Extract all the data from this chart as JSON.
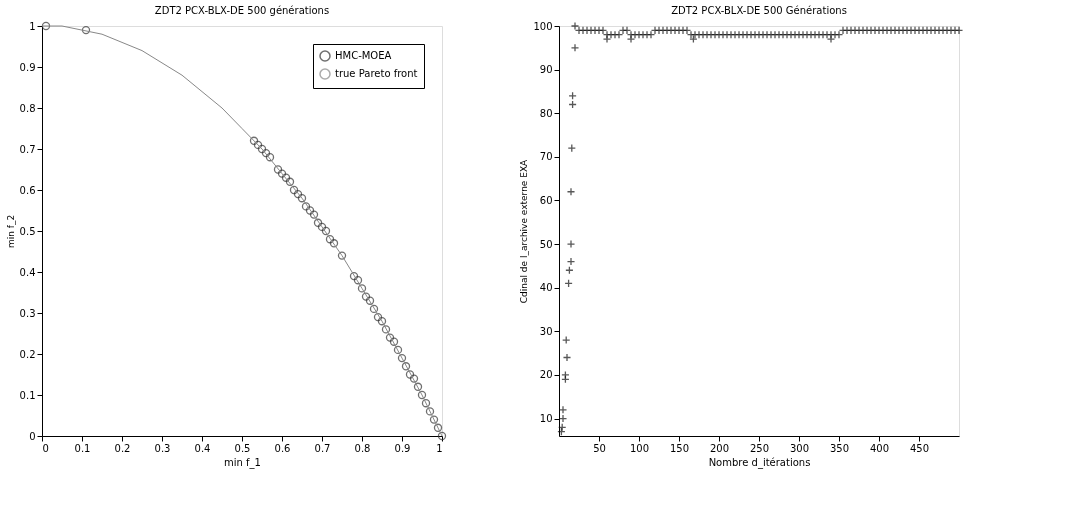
{
  "chart_data": [
    {
      "type": "scatter",
      "title": "ZDT2   PCX-BLX-DE   500 générations",
      "xlabel": "min f_1",
      "ylabel": "min f_2",
      "xlim": [
        0,
        1
      ],
      "ylim": [
        0,
        1
      ],
      "xticks": [
        0,
        0.1,
        0.2,
        0.3,
        0.4,
        0.5,
        0.6,
        0.7,
        0.8,
        0.9,
        1
      ],
      "yticks": [
        0,
        0.1,
        0.2,
        0.3,
        0.4,
        0.5,
        0.6,
        0.7,
        0.8,
        0.9,
        1
      ],
      "grid": false,
      "legend": "top right",
      "series": [
        {
          "name": "HMC-MOEA",
          "type": "scatter",
          "marker": "circle",
          "color": "#333333",
          "x": [
            0.01,
            0.11,
            0.53,
            0.54,
            0.55,
            0.56,
            0.57,
            0.59,
            0.6,
            0.61,
            0.62,
            0.63,
            0.64,
            0.65,
            0.66,
            0.67,
            0.68,
            0.69,
            0.7,
            0.71,
            0.72,
            0.73,
            0.75,
            0.78,
            0.79,
            0.8,
            0.81,
            0.82,
            0.83,
            0.84,
            0.85,
            0.86,
            0.87,
            0.88,
            0.89,
            0.9,
            0.91,
            0.92,
            0.93,
            0.94,
            0.95,
            0.96,
            0.97,
            0.98,
            0.99,
            1.0
          ],
          "values": [
            1.0,
            0.99,
            0.72,
            0.71,
            0.7,
            0.69,
            0.68,
            0.65,
            0.64,
            0.63,
            0.62,
            0.6,
            0.59,
            0.58,
            0.56,
            0.55,
            0.54,
            0.52,
            0.51,
            0.5,
            0.48,
            0.47,
            0.44,
            0.39,
            0.38,
            0.36,
            0.34,
            0.33,
            0.31,
            0.29,
            0.28,
            0.26,
            0.24,
            0.23,
            0.21,
            0.19,
            0.17,
            0.15,
            0.14,
            0.12,
            0.1,
            0.08,
            0.06,
            0.04,
            0.02,
            0.0
          ]
        },
        {
          "name": "true Pareto front",
          "type": "line",
          "line_style": "solid",
          "color": "#888888",
          "x": [
            0,
            0.05,
            0.1,
            0.15,
            0.2,
            0.25,
            0.3,
            0.35,
            0.4,
            0.45,
            0.5,
            0.55,
            0.6,
            0.65,
            0.7,
            0.75,
            0.8,
            0.85,
            0.9,
            0.95,
            1
          ],
          "values": [
            1,
            1.0,
            0.99,
            0.98,
            0.96,
            0.94,
            0.91,
            0.88,
            0.84,
            0.8,
            0.75,
            0.7,
            0.64,
            0.58,
            0.51,
            0.44,
            0.36,
            0.28,
            0.19,
            0.1,
            0
          ]
        }
      ]
    },
    {
      "type": "scatter",
      "title": "ZDT2   PCX-BLX-DE   500 Générations",
      "xlabel": "Nombre d_itérations",
      "ylabel": "Cdinal de l_archive externe EXA",
      "xlim": [
        0,
        500
      ],
      "ylim": [
        6,
        100
      ],
      "xticks": [
        50,
        100,
        150,
        200,
        250,
        300,
        350,
        400,
        450
      ],
      "yticks": [
        10,
        20,
        30,
        40,
        50,
        60,
        70,
        80,
        90,
        100
      ],
      "grid": false,
      "legend": false,
      "marker": "cross",
      "series": [
        {
          "color": "#111111",
          "x": [
            3,
            4,
            5,
            5,
            8,
            8,
            9,
            10,
            12,
            13,
            15,
            15,
            15,
            16,
            17,
            17,
            20,
            20,
            25,
            30,
            35,
            40,
            45,
            50,
            55,
            60,
            60,
            65,
            70,
            75,
            80,
            85,
            90,
            90,
            95,
            100,
            105,
            110,
            115,
            120,
            125,
            130,
            135,
            140,
            145,
            150,
            155,
            160,
            165,
            168,
            170,
            175,
            180,
            185,
            190,
            195,
            200,
            205,
            210,
            215,
            220,
            225,
            230,
            235,
            240,
            245,
            250,
            255,
            260,
            265,
            270,
            275,
            280,
            285,
            290,
            295,
            300,
            305,
            310,
            315,
            320,
            325,
            330,
            335,
            340,
            340,
            345,
            350,
            355,
            360,
            365,
            370,
            375,
            380,
            385,
            390,
            395,
            400,
            405,
            410,
            415,
            420,
            425,
            430,
            435,
            440,
            445,
            450,
            455,
            460,
            465,
            470,
            475,
            480,
            485,
            490,
            495,
            500
          ],
          "values": [
            7,
            8,
            10,
            12,
            19,
            20,
            28,
            24,
            41,
            44,
            46,
            50,
            62,
            72,
            82,
            84,
            95,
            100,
            99,
            99,
            99,
            99,
            99,
            99,
            99,
            98,
            97,
            98,
            98,
            98,
            99,
            99,
            98,
            97,
            98,
            98,
            98,
            98,
            98,
            99,
            99,
            99,
            99,
            99,
            99,
            99,
            99,
            99,
            98,
            97,
            98,
            98,
            98,
            98,
            98,
            98,
            98,
            98,
            98,
            98,
            98,
            98,
            98,
            98,
            98,
            98,
            98,
            98,
            98,
            98,
            98,
            98,
            98,
            98,
            98,
            98,
            98,
            98,
            98,
            98,
            98,
            98,
            98,
            98,
            98,
            97,
            98,
            98,
            99,
            99,
            99,
            99,
            99,
            99,
            99,
            99,
            99,
            99,
            99,
            99,
            99,
            99,
            99,
            99,
            99,
            99,
            99,
            99,
            99,
            99,
            99,
            99,
            99,
            99,
            99,
            99,
            99,
            99
          ]
        }
      ]
    }
  ]
}
